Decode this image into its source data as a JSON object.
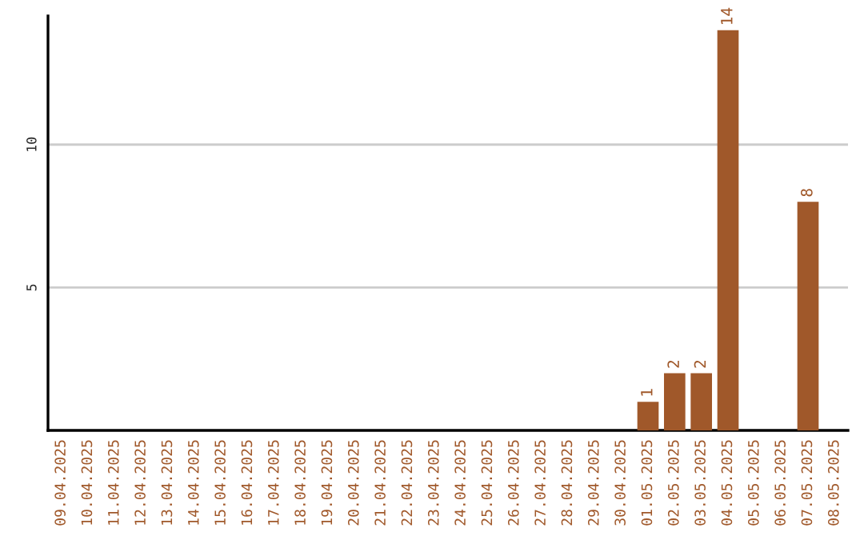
{
  "chart_data": {
    "type": "bar",
    "categories": [
      "09.04.2025",
      "10.04.2025",
      "11.04.2025",
      "12.04.2025",
      "13.04.2025",
      "14.04.2025",
      "15.04.2025",
      "16.04.2025",
      "17.04.2025",
      "18.04.2025",
      "19.04.2025",
      "20.04.2025",
      "21.04.2025",
      "22.04.2025",
      "23.04.2025",
      "24.04.2025",
      "25.04.2025",
      "26.04.2025",
      "27.04.2025",
      "28.04.2025",
      "29.04.2025",
      "30.04.2025",
      "01.05.2025",
      "02.05.2025",
      "03.05.2025",
      "04.05.2025",
      "05.05.2025",
      "06.05.2025",
      "07.05.2025",
      "08.05.2025"
    ],
    "values": [
      null,
      null,
      null,
      null,
      null,
      null,
      null,
      null,
      null,
      null,
      null,
      null,
      null,
      null,
      null,
      null,
      null,
      null,
      null,
      null,
      null,
      null,
      1,
      2,
      2,
      14,
      null,
      null,
      8,
      null
    ],
    "value_labels": [
      null,
      null,
      null,
      null,
      null,
      null,
      null,
      null,
      null,
      null,
      null,
      null,
      null,
      null,
      null,
      null,
      null,
      null,
      null,
      null,
      null,
      null,
      "1",
      "2",
      "2",
      "14",
      null,
      null,
      "8",
      null
    ],
    "color": "#a0582a",
    "ylim": [
      0,
      14.5
    ],
    "yticks": [
      5,
      10
    ],
    "grid": "y",
    "legend": false
  }
}
